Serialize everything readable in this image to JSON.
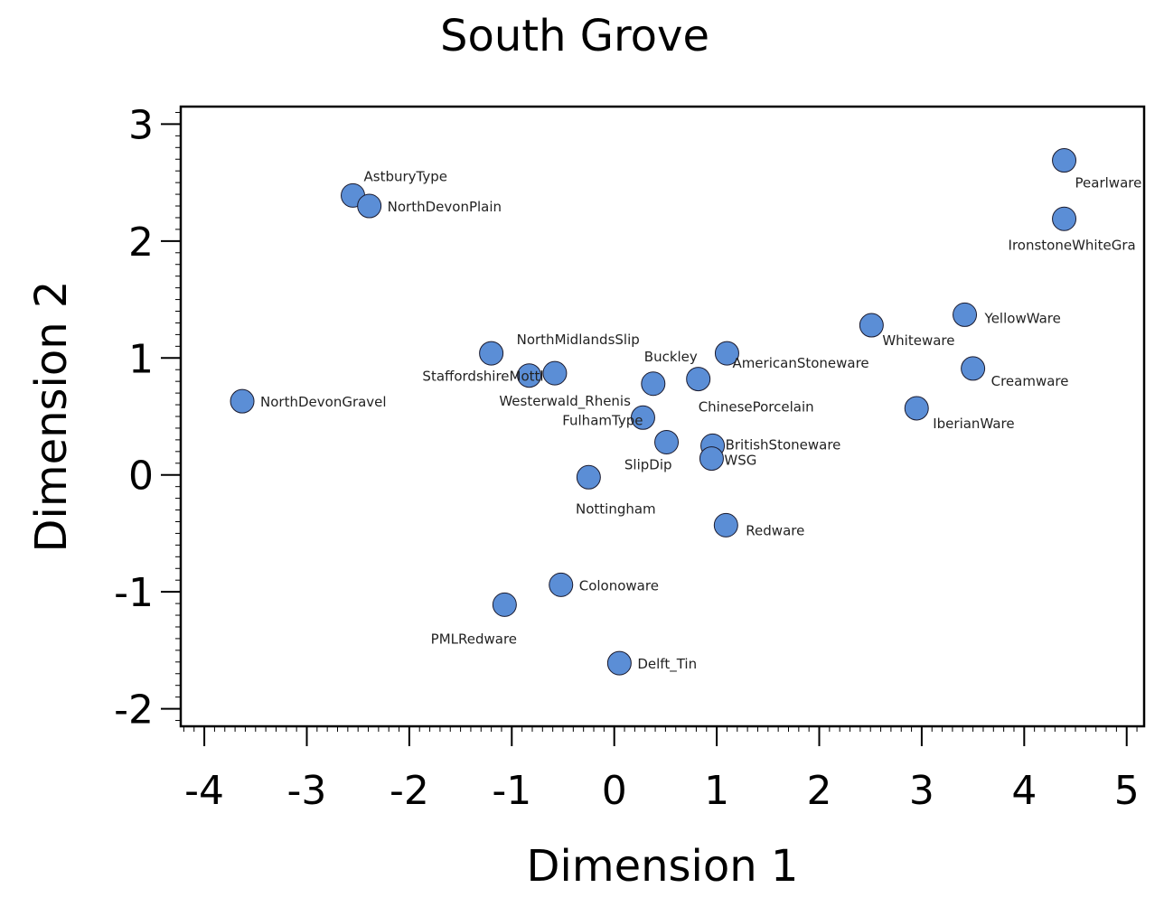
{
  "chart_data": {
    "type": "scatter",
    "title": "South Grove",
    "xlabel": "Dimension 1",
    "ylabel": "Dimension 2",
    "xlim": [
      -4.23,
      5.17
    ],
    "ylim": [
      -2.15,
      3.15
    ],
    "xticks": [
      -4,
      -3,
      -2,
      -1,
      0,
      1,
      2,
      3,
      4,
      5
    ],
    "yticks": [
      -2,
      -1,
      0,
      1,
      2,
      3
    ],
    "xtick_labels": [
      "-4",
      "-3",
      "-2",
      "-1",
      "0",
      "1",
      "2",
      "3",
      "4",
      "5"
    ],
    "ytick_labels": [
      "-2",
      "-1",
      "0",
      "1",
      "2",
      "3"
    ],
    "grid": false,
    "legend": "none",
    "marker_color": "#5b8ed6",
    "points": [
      {
        "label": "AstburyType",
        "x": -2.55,
        "y": 2.39
      },
      {
        "label": "NorthDevonPlain",
        "x": -2.39,
        "y": 2.3
      },
      {
        "label": "NorthDevonGravel",
        "x": -3.63,
        "y": 0.63
      },
      {
        "label": "NorthMidlandsSlip",
        "x": -1.2,
        "y": 1.04
      },
      {
        "label": "StaffordshireMottl",
        "x": -0.83,
        "y": 0.85
      },
      {
        "label": "Westerwald_Rhenis",
        "x": -0.58,
        "y": 0.87
      },
      {
        "label": "Buckley",
        "x": 0.38,
        "y": 0.78
      },
      {
        "label": "ChinesePorcelain",
        "x": 0.82,
        "y": 0.82
      },
      {
        "label": "AmericanStoneware",
        "x": 1.1,
        "y": 1.04
      },
      {
        "label": "FulhamType",
        "x": 0.28,
        "y": 0.49
      },
      {
        "label": "SlipDip",
        "x": 0.51,
        "y": 0.28
      },
      {
        "label": "BritishStoneware",
        "x": 0.96,
        "y": 0.25
      },
      {
        "label": "WSG",
        "x": 0.95,
        "y": 0.14
      },
      {
        "label": "Nottingham",
        "x": -0.25,
        "y": -0.02
      },
      {
        "label": "Redware",
        "x": 1.09,
        "y": -0.43
      },
      {
        "label": "Colonoware",
        "x": -0.52,
        "y": -0.94
      },
      {
        "label": "PMLRedware",
        "x": -1.07,
        "y": -1.11
      },
      {
        "label": "Delft_Tin",
        "x": 0.05,
        "y": -1.61
      },
      {
        "label": "Whiteware",
        "x": 2.51,
        "y": 1.28
      },
      {
        "label": "YellowWare",
        "x": 3.42,
        "y": 1.37
      },
      {
        "label": "Creamware",
        "x": 3.5,
        "y": 0.91
      },
      {
        "label": "IberianWare",
        "x": 2.95,
        "y": 0.57
      },
      {
        "label": "Pearlware",
        "x": 4.39,
        "y": 2.69
      },
      {
        "label": "IronstoneWhiteGra",
        "x": 4.39,
        "y": 2.19
      }
    ]
  }
}
